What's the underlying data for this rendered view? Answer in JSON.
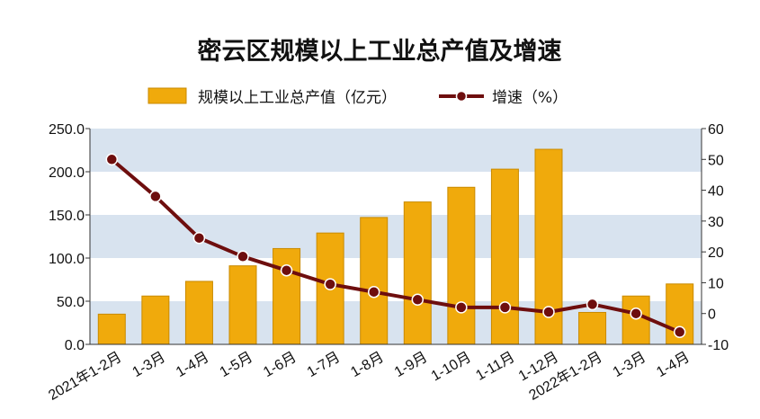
{
  "chart_data": {
    "type": "bar",
    "title": "密云区规模以上工业总产值及增速",
    "categories": [
      "2021年1-2月",
      "1-3月",
      "1-4月",
      "1-5月",
      "1-6月",
      "1-7月",
      "1-8月",
      "1-9月",
      "1-10月",
      "1-11月",
      "1-12月",
      "2022年1-2月",
      "1-3月",
      "1-4月"
    ],
    "series": [
      {
        "name": "规模以上工业总产值（亿元）",
        "type": "bar",
        "axis": "left",
        "values": [
          35,
          56,
          73,
          91,
          111,
          129,
          147,
          165,
          182,
          203,
          226,
          37,
          56,
          70
        ]
      },
      {
        "name": "增速（%）",
        "type": "line",
        "axis": "right",
        "values": [
          50,
          38,
          24.5,
          18.5,
          14,
          9.5,
          7,
          4.5,
          2,
          2,
          0.5,
          3,
          0,
          -6
        ]
      }
    ],
    "y_left": {
      "range": [
        0,
        250
      ],
      "ticks": [
        "0.0",
        "50.0",
        "100.0",
        "150.0",
        "200.0",
        "250.0"
      ]
    },
    "y_right": {
      "range": [
        -10,
        60
      ],
      "ticks": [
        "-10",
        "0",
        "10",
        "20",
        "30",
        "40",
        "50",
        "60"
      ]
    },
    "grid": "alternating horizontal bands",
    "legend_position": "top-center",
    "colors": {
      "bar": "#F0AA0C",
      "bar_stroke": "#C98A00",
      "line": "#6E0E0E",
      "band": "#D8E3EF"
    }
  }
}
